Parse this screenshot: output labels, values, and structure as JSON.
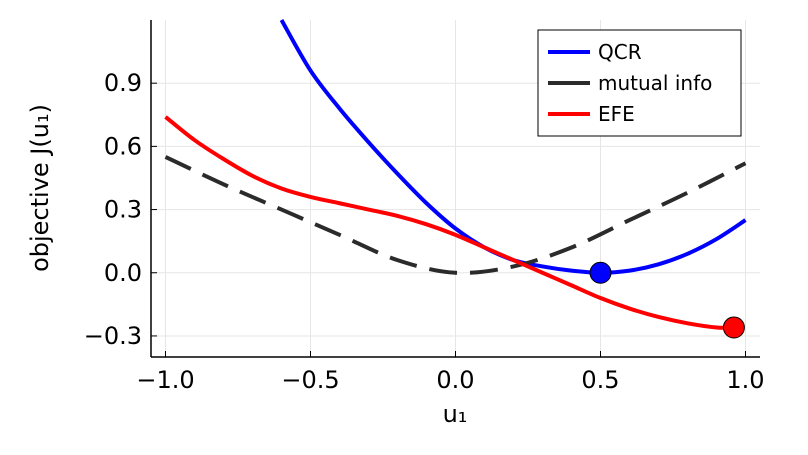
{
  "chart_data": {
    "type": "line",
    "xlabel": "u₁",
    "ylabel": "objective J(u₁)",
    "xlim": [
      -1.05,
      1.05
    ],
    "ylim": [
      -0.4,
      1.2
    ],
    "xticks": [
      -1.0,
      -0.5,
      0.0,
      0.5,
      1.0
    ],
    "xtick_labels": [
      "−1.0",
      "−0.5",
      "0.0",
      "0.5",
      "1.0"
    ],
    "yticks": [
      -0.3,
      0.0,
      0.3,
      0.6,
      0.9
    ],
    "ytick_labels": [
      "−0.3",
      "0.0",
      "0.3",
      "0.6",
      "0.9"
    ],
    "grid": true,
    "legend_position": "top-right",
    "series": [
      {
        "name": "QCR",
        "color": "#0000ff",
        "style": "solid",
        "x": [
          -0.6,
          -0.5,
          -0.4,
          -0.3,
          -0.2,
          -0.1,
          0.0,
          0.1,
          0.2,
          0.3,
          0.4,
          0.5,
          0.6,
          0.7,
          0.8,
          0.9,
          1.0
        ],
        "y": [
          1.2,
          0.96,
          0.78,
          0.62,
          0.47,
          0.33,
          0.21,
          0.12,
          0.06,
          0.03,
          0.01,
          0.0,
          0.01,
          0.04,
          0.09,
          0.16,
          0.25
        ]
      },
      {
        "name": "mutual info",
        "color": "#2b2b2b",
        "style": "dashed",
        "x": [
          -1.0,
          -0.8,
          -0.6,
          -0.4,
          -0.2,
          0.0,
          0.2,
          0.4,
          0.6,
          0.8,
          1.0
        ],
        "y": [
          0.55,
          0.42,
          0.3,
          0.18,
          0.06,
          0.0,
          0.03,
          0.12,
          0.25,
          0.38,
          0.52
        ]
      },
      {
        "name": "EFE",
        "color": "#ff0000",
        "style": "solid",
        "x": [
          -1.0,
          -0.9,
          -0.8,
          -0.7,
          -0.6,
          -0.5,
          -0.4,
          -0.3,
          -0.2,
          -0.1,
          0.0,
          0.1,
          0.2,
          0.3,
          0.4,
          0.5,
          0.6,
          0.7,
          0.8,
          0.9,
          0.95
        ],
        "y": [
          0.74,
          0.63,
          0.54,
          0.46,
          0.4,
          0.36,
          0.33,
          0.3,
          0.27,
          0.23,
          0.18,
          0.12,
          0.06,
          0.0,
          -0.06,
          -0.12,
          -0.17,
          -0.21,
          -0.24,
          -0.26,
          -0.26
        ]
      }
    ],
    "markers": [
      {
        "series": "QCR",
        "x": 0.5,
        "y": 0.0,
        "color": "#0000ff"
      },
      {
        "series": "EFE",
        "x": 0.96,
        "y": -0.26,
        "color": "#ff0000"
      }
    ]
  }
}
